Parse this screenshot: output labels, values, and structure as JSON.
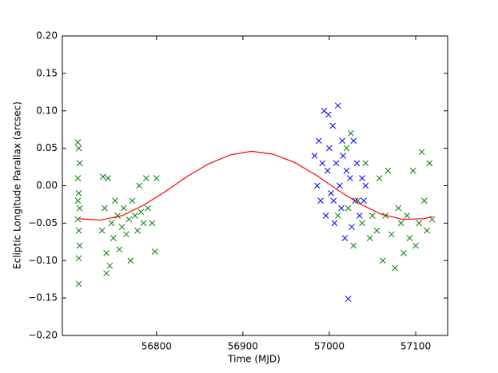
{
  "chart_data": {
    "type": "scatter",
    "xlabel": "Time (MJD)",
    "ylabel": "Ecliptic Longitude Parallax (arcsec)",
    "xlim": [
      56691,
      57137
    ],
    "ylim": [
      -0.2,
      0.2
    ],
    "xticks": [
      56800,
      56900,
      57000,
      57100
    ],
    "yticks": [
      {
        "value": -0.2,
        "label": "−0.20"
      },
      {
        "value": -0.15,
        "label": "−0.15"
      },
      {
        "value": -0.1,
        "label": "−0.10"
      },
      {
        "value": -0.05,
        "label": "−0.05"
      },
      {
        "value": 0,
        "label": "0.00"
      },
      {
        "value": 0.05,
        "label": "0.05"
      },
      {
        "value": 0.1,
        "label": "0.10"
      },
      {
        "value": 0.15,
        "label": "0.15"
      },
      {
        "value": 0.2,
        "label": "0.20"
      }
    ],
    "series": [
      {
        "color": "#008000",
        "marker": "x",
        "x": [
          56709,
          56710,
          56711,
          56709,
          56710,
          56711,
          56709,
          56710,
          56711,
          56710,
          56710,
          56709,
          56737,
          56740,
          56742,
          56744,
          56746,
          56748,
          56750,
          56752,
          56755,
          56757,
          56760,
          56762,
          56765,
          56768,
          56770,
          56772,
          56775,
          56778,
          56780,
          56782,
          56785,
          56788,
          56790,
          56795,
          56800,
          56798,
          56742,
          56738,
          57010,
          57020,
          57022,
          57025,
          57028,
          57033,
          57038,
          57042,
          57047,
          57050,
          57055,
          57058,
          57062,
          57065,
          57068,
          57072,
          57076,
          57080,
          57083,
          57086,
          57090,
          57093,
          57097,
          57100,
          57104,
          57107,
          57110,
          57113,
          57116,
          57119
        ],
        "values": [
          0.058,
          0.05,
          0.03,
          0.01,
          -0.01,
          -0.03,
          -0.045,
          -0.06,
          -0.08,
          -0.097,
          -0.131,
          -0.02,
          -0.06,
          -0.03,
          -0.09,
          0.01,
          -0.107,
          -0.05,
          -0.07,
          -0.02,
          -0.04,
          -0.085,
          -0.055,
          -0.03,
          -0.065,
          -0.045,
          -0.1,
          -0.02,
          -0.04,
          -0.06,
          0.0,
          -0.035,
          -0.05,
          0.01,
          -0.03,
          -0.05,
          0.01,
          -0.088,
          -0.117,
          0.012,
          -0.04,
          0.05,
          -0.03,
          0.07,
          -0.08,
          -0.02,
          -0.05,
          0.03,
          -0.07,
          -0.04,
          -0.06,
          0.01,
          -0.1,
          -0.04,
          0.02,
          -0.065,
          -0.11,
          -0.03,
          -0.05,
          -0.09,
          -0.04,
          -0.07,
          0.02,
          -0.08,
          -0.05,
          0.045,
          -0.02,
          -0.06,
          0.03,
          -0.045
        ]
      },
      {
        "color": "#0000ff",
        "marker": "x",
        "x": [
          56983,
          56986,
          56988,
          56990,
          56992,
          56994,
          56996,
          56998,
          57000,
          57002,
          57004,
          57006,
          57008,
          57010,
          57012,
          57014,
          57016,
          57018,
          57020,
          57022,
          57024,
          57026,
          57028,
          57030,
          57032,
          57035,
          57038,
          57040,
          57042,
          56999,
          57005,
          57015
        ],
        "values": [
          0.04,
          0.0,
          0.06,
          -0.02,
          0.03,
          0.1,
          -0.04,
          0.02,
          0.05,
          -0.01,
          0.08,
          -0.05,
          0.03,
          0.107,
          0.0,
          -0.03,
          0.04,
          -0.07,
          0.02,
          -0.151,
          0.01,
          -0.055,
          0.06,
          -0.02,
          0.03,
          -0.04,
          0.01,
          -0.02,
          0.0,
          0.095,
          -0.02,
          0.06
        ]
      },
      {
        "color": "#ff0000",
        "marker": "line",
        "x": [
          56710,
          56735,
          56760,
          56785,
          56810,
          56835,
          56860,
          56885,
          56910,
          56935,
          56960,
          56985,
          57010,
          57035,
          57060,
          57085,
          57110,
          57120
        ],
        "values": [
          -0.044,
          -0.046,
          -0.04,
          -0.026,
          -0.008,
          0.012,
          0.029,
          0.041,
          0.046,
          0.042,
          0.031,
          0.014,
          -0.006,
          -0.024,
          -0.038,
          -0.045,
          -0.044,
          -0.041
        ]
      }
    ]
  }
}
